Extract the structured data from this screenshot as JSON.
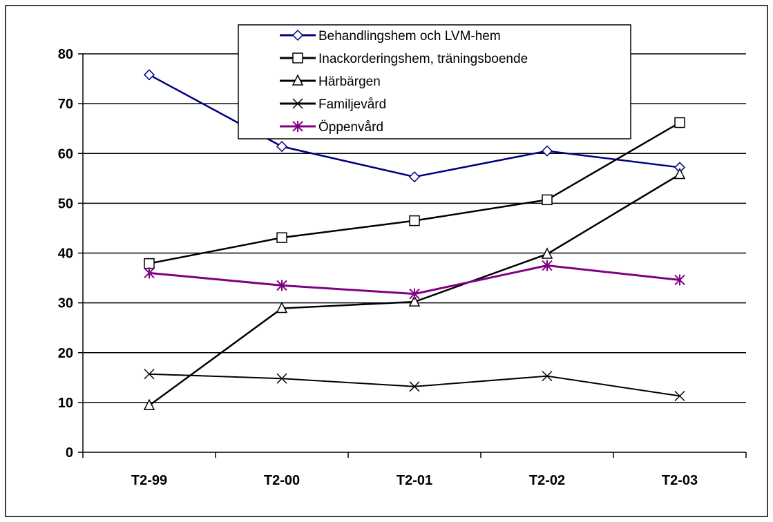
{
  "chart_data": {
    "type": "line",
    "title": "",
    "xlabel": "",
    "ylabel": "",
    "categories": [
      "T2-99",
      "T2-00",
      "T2-01",
      "T2-02",
      "T2-03"
    ],
    "ylim": [
      0,
      80
    ],
    "yticks": [
      "0",
      "10",
      "20",
      "30",
      "40",
      "50",
      "60",
      "70",
      "80"
    ],
    "grid": true,
    "legend_position": "top-center",
    "series": [
      {
        "name": "Behandlingshem och LVM-hem",
        "values": [
          75.8,
          61.4,
          55.3,
          60.5,
          57.2
        ],
        "color": "#000080",
        "marker": "diamond"
      },
      {
        "name": "Inackorderingshem, träningsboende",
        "values": [
          37.9,
          43.1,
          46.5,
          50.7,
          66.2
        ],
        "color": "#000000",
        "marker": "square"
      },
      {
        "name": "Härbärgen",
        "values": [
          9.4,
          28.9,
          30.2,
          39.8,
          55.8
        ],
        "color": "#000000",
        "marker": "triangle"
      },
      {
        "name": "Familjevård",
        "values": [
          15.7,
          14.8,
          13.2,
          15.3,
          11.3
        ],
        "color": "#000000",
        "marker": "x"
      },
      {
        "name": "Öppenvård",
        "values": [
          36.0,
          33.5,
          31.8,
          37.5,
          34.6
        ],
        "color": "#800080",
        "marker": "star"
      }
    ]
  }
}
